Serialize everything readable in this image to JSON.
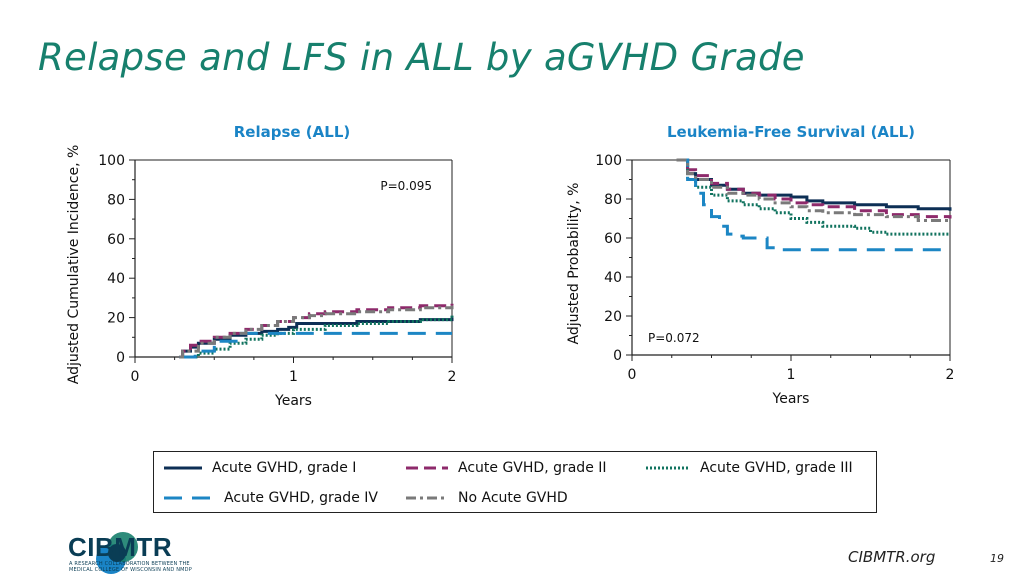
{
  "slide": {
    "title": "Relapse and LFS in ALL by aGVHD Grade",
    "footer_site": "CIBMTR.org",
    "page_number": "19",
    "logo_text": "CIBMTR",
    "logo_subtitle": "A RESEARCH COLLABORATION BETWEEN THE MEDICAL COLLEGE OF WISCONSIN AND NMDP"
  },
  "legend": [
    {
      "key": "g1",
      "label": "Acute GVHD, grade I"
    },
    {
      "key": "g2",
      "label": "Acute GVHD, grade II"
    },
    {
      "key": "g3",
      "label": "Acute GVHD, grade III"
    },
    {
      "key": "g4",
      "label": "Acute GVHD, grade IV"
    },
    {
      "key": "none",
      "label": "No Acute GVHD"
    }
  ],
  "colors": {
    "g1": "#0d2f55",
    "g2": "#8e2a6b",
    "g3": "#11735f",
    "g4": "#1c86c4",
    "none": "#7a7a7a",
    "chart_title": "#1a84c6",
    "slide_title": "#17806d"
  },
  "chart_data": [
    {
      "type": "line",
      "title": "Relapse (ALL)",
      "xlabel": "Years",
      "ylabel": "Adjusted Cumulative Incidence, %",
      "xlim": [
        0,
        2
      ],
      "ylim": [
        0,
        100
      ],
      "xticks": [
        0,
        1,
        2
      ],
      "yticks": [
        0,
        20,
        40,
        60,
        80,
        100
      ],
      "annotation": "P=0.095",
      "annotation_position": "top-right",
      "series": [
        {
          "key": "g1",
          "name": "Acute GVHD, grade I",
          "x": [
            0.28,
            0.3,
            0.35,
            0.4,
            0.5,
            0.6,
            0.7,
            0.8,
            0.9,
            0.97,
            1.0,
            1.02,
            1.2,
            1.4,
            1.6,
            1.8,
            2.0
          ],
          "y": [
            0,
            3,
            5,
            7,
            9,
            11,
            12,
            13,
            14,
            15,
            15,
            17,
            17,
            18,
            18,
            19,
            20
          ]
        },
        {
          "key": "g2",
          "name": "Acute GVHD, grade II",
          "x": [
            0.28,
            0.3,
            0.35,
            0.4,
            0.5,
            0.6,
            0.7,
            0.8,
            0.9,
            1.0,
            1.1,
            1.2,
            1.4,
            1.6,
            1.8,
            2.0
          ],
          "y": [
            0,
            3,
            6,
            8,
            10,
            12,
            14,
            16,
            18,
            20,
            22,
            23,
            24,
            25,
            26,
            27
          ]
        },
        {
          "key": "g3",
          "name": "Acute GVHD, grade III",
          "x": [
            0.28,
            0.35,
            0.4,
            0.5,
            0.6,
            0.7,
            0.8,
            0.9,
            0.97,
            1.0,
            1.2,
            1.4,
            1.6,
            1.8,
            2.0
          ],
          "y": [
            0,
            0,
            2,
            4,
            7,
            9,
            11,
            12,
            12,
            14,
            16,
            17,
            18,
            19,
            21
          ]
        },
        {
          "key": "g4",
          "name": "Acute GVHD, grade IV",
          "x": [
            0.28,
            0.36,
            0.38,
            0.48,
            0.5,
            0.6,
            0.65,
            0.8,
            0.9,
            1.0,
            1.5,
            2.0
          ],
          "y": [
            0,
            0,
            3,
            3,
            8,
            8,
            12,
            12,
            12,
            12,
            12,
            12
          ]
        },
        {
          "key": "none",
          "name": "No Acute GVHD",
          "x": [
            0.28,
            0.3,
            0.4,
            0.5,
            0.6,
            0.7,
            0.8,
            0.9,
            1.0,
            1.1,
            1.2,
            1.4,
            1.6,
            1.8,
            2.0
          ],
          "y": [
            0,
            3,
            7,
            10,
            12,
            14,
            16,
            18,
            20,
            21,
            22,
            23,
            24,
            25,
            26
          ]
        }
      ]
    },
    {
      "type": "line",
      "title": "Leukemia-Free Survival (ALL)",
      "xlabel": "Years",
      "ylabel": "Adjusted Probability, %",
      "xlim": [
        0,
        2
      ],
      "ylim": [
        0,
        100
      ],
      "xticks": [
        0,
        1,
        2
      ],
      "yticks": [
        0,
        20,
        40,
        60,
        80,
        100
      ],
      "annotation": "P=0.072",
      "annotation_position": "bottom-left",
      "series": [
        {
          "key": "g1",
          "name": "Acute GVHD, grade I",
          "x": [
            0.28,
            0.35,
            0.4,
            0.5,
            0.6,
            0.7,
            0.8,
            0.9,
            1.0,
            1.1,
            1.2,
            1.4,
            1.6,
            1.8,
            2.0
          ],
          "y": [
            100,
            93,
            90,
            87,
            85,
            83,
            82,
            82,
            81,
            79,
            78,
            77,
            76,
            75,
            74
          ]
        },
        {
          "key": "g2",
          "name": "Acute GVHD, grade II",
          "x": [
            0.28,
            0.35,
            0.4,
            0.5,
            0.6,
            0.7,
            0.8,
            0.9,
            1.0,
            1.1,
            1.2,
            1.4,
            1.6,
            1.8,
            2.0
          ],
          "y": [
            100,
            95,
            92,
            88,
            85,
            83,
            82,
            80,
            78,
            77,
            76,
            74,
            72,
            71,
            70
          ]
        },
        {
          "key": "g3",
          "name": "Acute GVHD, grade III",
          "x": [
            0.28,
            0.35,
            0.4,
            0.5,
            0.6,
            0.7,
            0.8,
            0.9,
            1.0,
            1.1,
            1.2,
            1.4,
            1.5,
            1.6,
            1.8,
            2.0
          ],
          "y": [
            100,
            90,
            86,
            82,
            79,
            77,
            75,
            73,
            70,
            68,
            66,
            65,
            63,
            62,
            62,
            62
          ]
        },
        {
          "key": "g4",
          "name": "Acute GVHD, grade IV",
          "x": [
            0.28,
            0.35,
            0.4,
            0.45,
            0.5,
            0.55,
            0.6,
            0.65,
            0.7,
            0.8,
            0.85,
            0.9,
            1.0,
            1.5,
            2.0
          ],
          "y": [
            100,
            90,
            83,
            77,
            71,
            66,
            62,
            61,
            60,
            60,
            55,
            54,
            54,
            54,
            54
          ]
        },
        {
          "key": "none",
          "name": "No Acute GVHD",
          "x": [
            0.28,
            0.35,
            0.4,
            0.5,
            0.6,
            0.7,
            0.8,
            0.9,
            1.0,
            1.1,
            1.2,
            1.4,
            1.6,
            1.8,
            2.0
          ],
          "y": [
            100,
            93,
            90,
            86,
            83,
            82,
            80,
            78,
            76,
            74,
            73,
            72,
            71,
            69,
            68
          ]
        }
      ]
    }
  ]
}
